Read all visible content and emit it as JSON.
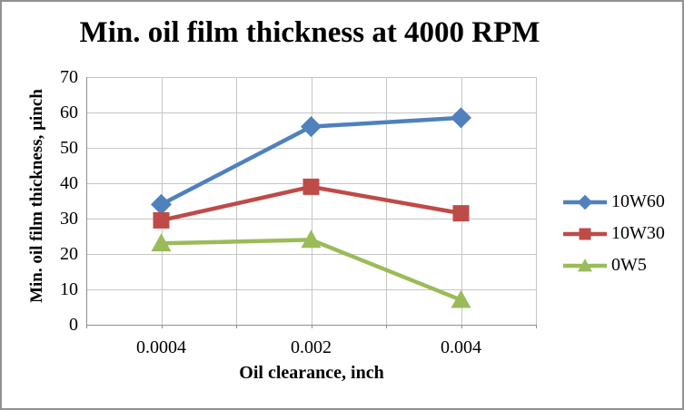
{
  "frame": {
    "background": "#FFFFFF",
    "border_color": "#919191"
  },
  "chart_data": {
    "type": "line",
    "title": "Min. oil film thickness at 4000 RPM",
    "xlabel": "Oil clearance, inch",
    "ylabel": "Min. oil film thickness, µinch",
    "categories": [
      "0.0004",
      "0.002",
      "0.004"
    ],
    "series": [
      {
        "name": "10W60",
        "values": [
          34,
          56,
          58.5
        ],
        "color": "#4F81BD",
        "marker": "diamond"
      },
      {
        "name": "10W30",
        "values": [
          29.5,
          39,
          31.5
        ],
        "color": "#BE4B48",
        "marker": "square"
      },
      {
        "name": "0W5",
        "values": [
          23,
          24,
          7
        ],
        "color": "#9BBB59",
        "marker": "triangle"
      }
    ],
    "ylim": [
      0,
      70
    ],
    "ytick_step": 10,
    "yticks": [
      "0",
      "10",
      "20",
      "30",
      "40",
      "50",
      "60",
      "70"
    ],
    "grid": "horizontal and vertical gridlines on",
    "legend_position": "right",
    "gridline_color": "#C6C6C6",
    "axis_color": "#8E8E8E"
  }
}
